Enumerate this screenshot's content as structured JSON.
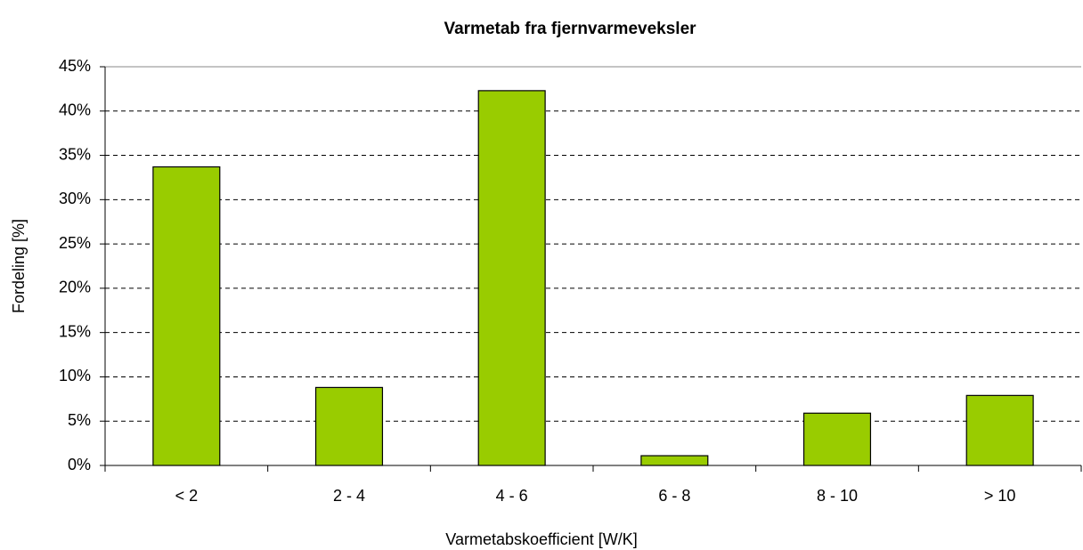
{
  "chart_data": {
    "type": "bar",
    "title": "Varmetab fra fjernvarmeveksler",
    "x_label": "Varmetabskoefficient [W/K]",
    "y_label": "Fordeling [%]",
    "categories": [
      "< 2",
      "2 - 4",
      "4 - 6",
      "6 - 8",
      "8 - 10",
      "> 10"
    ],
    "values": [
      33.7,
      8.8,
      42.3,
      1.1,
      5.9,
      7.9
    ],
    "color": "#99cc00",
    "ylim": [
      0,
      45
    ],
    "yticks": [
      {
        "value": 0,
        "label": "0%"
      },
      {
        "value": 5,
        "label": "5%"
      },
      {
        "value": 10,
        "label": "10%"
      },
      {
        "value": 15,
        "label": "15%"
      },
      {
        "value": 20,
        "label": "20%"
      },
      {
        "value": 25,
        "label": "25%"
      },
      {
        "value": 30,
        "label": "30%"
      },
      {
        "value": 35,
        "label": "35%"
      },
      {
        "value": 40,
        "label": "40%"
      },
      {
        "value": 45,
        "label": "45%"
      }
    ],
    "grid": true
  }
}
